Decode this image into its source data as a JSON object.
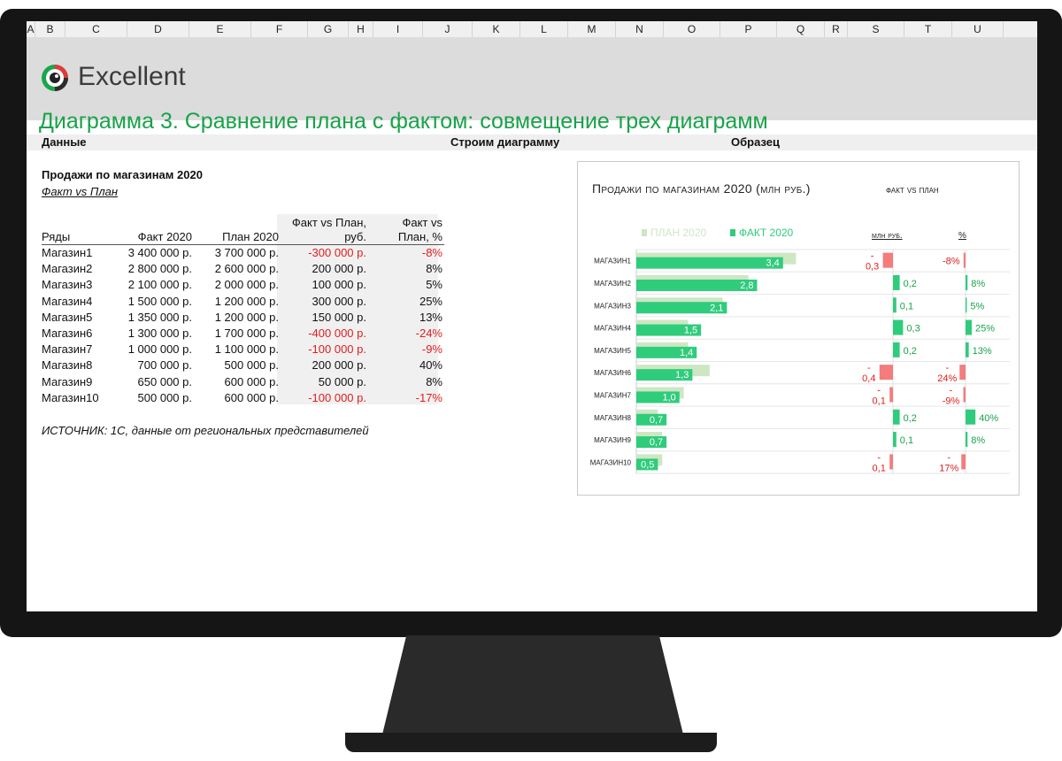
{
  "spreadsheet": {
    "columns": [
      "A",
      "B",
      "C",
      "D",
      "E",
      "F",
      "G",
      "H",
      "I",
      "J",
      "K",
      "L",
      "M",
      "N",
      "O",
      "P",
      "Q",
      "R",
      "S",
      "T",
      "U"
    ]
  },
  "banner": {
    "logo_text": "Excellent",
    "title": "Диаграмма 3. Сравнение плана с фактом: совмещение трех диаграмм"
  },
  "sections": {
    "data": "Данные",
    "build": "Строим диаграмму",
    "sample": "Образец"
  },
  "table": {
    "title": "Продажи по магазинам 2020",
    "subtitle": "Факт vs План",
    "headers": [
      "Ряды",
      "Факт 2020",
      "План 2020",
      "Факт vs План, руб.",
      "Факт vs План, %"
    ],
    "rows": [
      {
        "name": "Магазин1",
        "fact": "3 400 000 р.",
        "plan": "3 700 000 р.",
        "diff": "-300 000 р.",
        "pct": "-8%"
      },
      {
        "name": "Магазин2",
        "fact": "2 800 000 р.",
        "plan": "2 600 000 р.",
        "diff": "200 000 р.",
        "pct": "8%"
      },
      {
        "name": "Магазин3",
        "fact": "2 100 000 р.",
        "plan": "2 000 000 р.",
        "diff": "100 000 р.",
        "pct": "5%"
      },
      {
        "name": "Магазин4",
        "fact": "1 500 000 р.",
        "plan": "1 200 000 р.",
        "diff": "300 000 р.",
        "pct": "25%"
      },
      {
        "name": "Магазин5",
        "fact": "1 350 000 р.",
        "plan": "1 200 000 р.",
        "diff": "150 000 р.",
        "pct": "13%"
      },
      {
        "name": "Магазин6",
        "fact": "1 300 000 р.",
        "plan": "1 700 000 р.",
        "diff": "-400 000 р.",
        "pct": "-24%"
      },
      {
        "name": "Магазин7",
        "fact": "1 000 000 р.",
        "plan": "1 100 000 р.",
        "diff": "-100 000 р.",
        "pct": "-9%"
      },
      {
        "name": "Магазин8",
        "fact": "700 000 р.",
        "plan": "500 000 р.",
        "diff": "200 000 р.",
        "pct": "40%"
      },
      {
        "name": "Магазин9",
        "fact": "650 000 р.",
        "plan": "600 000 р.",
        "diff": "50 000 р.",
        "pct": "8%"
      },
      {
        "name": "Магазин10",
        "fact": "500 000 р.",
        "plan": "600 000 р.",
        "diff": "-100 000 р.",
        "pct": "-17%"
      }
    ],
    "source": "ИСТОЧНИК: 1С, данные от региональных представителей"
  },
  "chart_data": {
    "type": "bar",
    "title": "Продажи по магазинам 2020 (млн руб.)",
    "subtitle": "факт vs план",
    "categories": [
      "МАГАЗИН1",
      "МАГАЗИН2",
      "МАГАЗИН3",
      "МАГАЗИН4",
      "МАГАЗИН5",
      "МАГАЗИН6",
      "МАГАЗИН7",
      "МАГАЗИН8",
      "МАГАЗИН9",
      "МАГАЗИН10"
    ],
    "series": [
      {
        "name": "ПЛАН 2020",
        "values": [
          3.7,
          2.6,
          2.0,
          1.2,
          1.2,
          1.7,
          1.1,
          0.5,
          0.6,
          0.6
        ],
        "color": "#cde7c3"
      },
      {
        "name": "ФАКТ 2020",
        "values": [
          3.4,
          2.8,
          2.1,
          1.5,
          1.4,
          1.3,
          1.0,
          0.7,
          0.7,
          0.5
        ],
        "color": "#2fcc7c"
      }
    ],
    "fact_labels": [
      "3,4",
      "2,8",
      "2,1",
      "1,5",
      "1,4",
      "1,3",
      "1,0",
      "0,7",
      "0,7",
      "0,5"
    ],
    "diff_panel": {
      "header": "млн руб.",
      "values": [
        -0.3,
        0.2,
        0.1,
        0.3,
        0.2,
        -0.4,
        -0.1,
        0.2,
        0.1,
        -0.1
      ],
      "labels": [
        "-\n0,3",
        "0,2",
        "0,1",
        "0,3",
        "0,2",
        "-\n0,4",
        "-\n0,1",
        "0,2",
        "0,1",
        "-\n0,1"
      ]
    },
    "pct_panel": {
      "header": "%",
      "values": [
        -8,
        8,
        5,
        25,
        13,
        -24,
        -9,
        40,
        8,
        -17
      ],
      "labels": [
        "-8%",
        "8%",
        "5%",
        "25%",
        "13%",
        "-\n24%",
        "-\n-9%",
        "40%",
        "8%",
        "-\n17%"
      ]
    },
    "colors": {
      "positive": "#2fcc7c",
      "negative": "#f47c7c",
      "plan": "#cde7c3",
      "fact": "#2fcc7c",
      "label_negative": "#e11d1d",
      "label_positive": "#18a34a"
    },
    "grid": true,
    "legend": "top-left"
  }
}
